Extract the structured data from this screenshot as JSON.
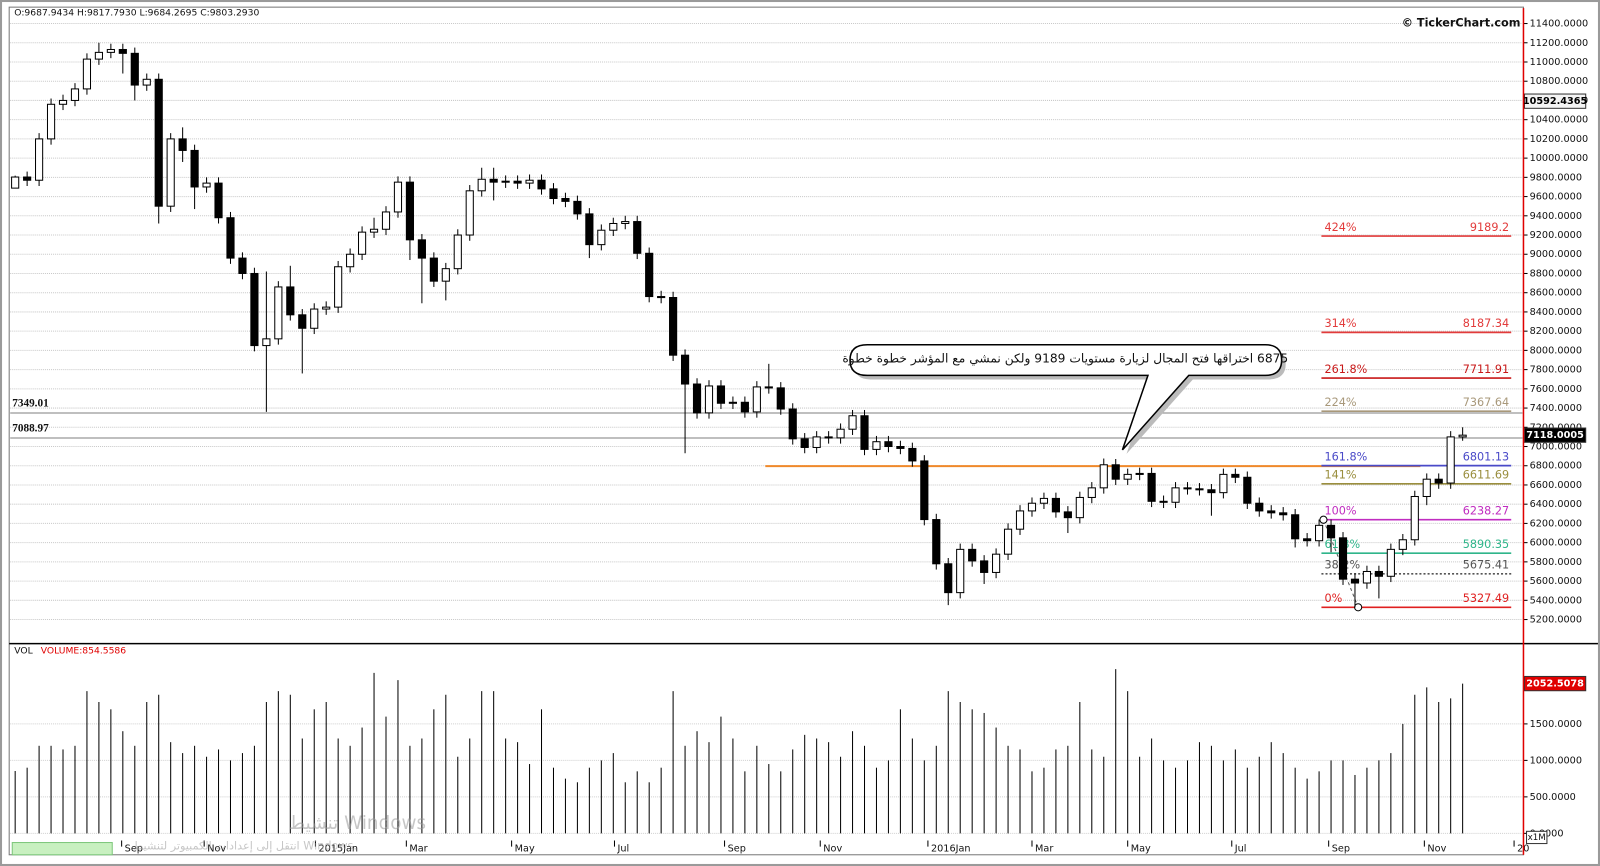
{
  "header": {
    "ohlc_text": "O:9687.9434 H:9817.7930 L:9684.2695 C:9803.2930",
    "copyright": "© TickerChart.com"
  },
  "watermark": [
    "تنشيط Windows",
    "انتقل إلى إعدادات الكمبيوتر لتنشيط Windows."
  ],
  "chart_data": [
    {
      "type": "candlestick",
      "open": [
        9687.9434,
        9803.293,
        9770,
        10200,
        10560,
        10600,
        10720,
        11030,
        11100,
        11130,
        11090,
        10760,
        10820,
        9500,
        10200,
        10080,
        9700,
        9740,
        9380,
        8960,
        8800,
        8050,
        8120,
        8660,
        8370,
        8230,
        8430,
        8450,
        8870,
        9000,
        9230,
        9260,
        9440,
        9750,
        9150,
        8960,
        8720,
        8850,
        9200,
        9660,
        9780,
        9750,
        9760,
        9740,
        9770,
        9680,
        9580,
        9550,
        9420,
        9100,
        9250,
        9320,
        9340,
        9010,
        8560,
        8550,
        7950,
        7650,
        7350,
        7630,
        7450,
        7460,
        7360,
        7620,
        7610,
        7390,
        7080,
        6990,
        7100,
        7090,
        7180,
        7320,
        6970,
        7050,
        7000,
        6980,
        6850,
        6240,
        5780,
        5480,
        5930,
        5810,
        5690,
        5880,
        6140,
        6330,
        6410,
        6460,
        6320,
        6260,
        6470,
        6570,
        6810,
        6660,
        6710,
        6720,
        6430,
        6420,
        6570,
        6560,
        6550,
        6520,
        6710,
        6680,
        6410,
        6330,
        6310,
        6290,
        6040,
        6020,
        6180,
        6050,
        5620,
        5580,
        5700,
        5650,
        5930,
        6030,
        6480,
        6660,
        6620,
        7100
      ],
      "high": [
        9817.793,
        9860,
        10260,
        10620,
        10660,
        10780,
        11090,
        11200,
        11190,
        11190,
        11150,
        10880,
        10880,
        10260,
        10320,
        10140,
        9800,
        9800,
        9440,
        9020,
        8860,
        8820,
        8720,
        8880,
        8430,
        8490,
        8510,
        8930,
        9060,
        9290,
        9380,
        9500,
        9810,
        9810,
        9210,
        9020,
        8910,
        9260,
        9720,
        9900,
        9900,
        9820,
        9820,
        9830,
        9830,
        9740,
        9640,
        9610,
        9480,
        9310,
        9380,
        9400,
        9400,
        9070,
        8620,
        8610,
        8010,
        7710,
        7690,
        7690,
        7520,
        7520,
        7680,
        7860,
        7670,
        7450,
        7140,
        7160,
        7160,
        7240,
        7380,
        7380,
        7110,
        7110,
        7060,
        7040,
        6910,
        6300,
        5840,
        5990,
        5990,
        5870,
        5940,
        6200,
        6390,
        6470,
        6520,
        6520,
        6380,
        6530,
        6630,
        6875,
        6870,
        6770,
        6780,
        6780,
        6490,
        6630,
        6630,
        6620,
        6610,
        6770,
        6770,
        6740,
        6470,
        6390,
        6370,
        6350,
        6100,
        6240,
        6240,
        6110,
        5680,
        5760,
        5760,
        5990,
        6090,
        6540,
        6720,
        6720,
        7160,
        7200
      ],
      "low": [
        9684.2695,
        9710,
        9710,
        10140,
        10500,
        10540,
        10660,
        10970,
        11040,
        10880,
        10600,
        10700,
        9320,
        9440,
        9960,
        9470,
        9640,
        9320,
        8900,
        8740,
        7990,
        7360,
        8060,
        8310,
        7760,
        8170,
        8370,
        8390,
        8810,
        8940,
        9170,
        9200,
        9380,
        8940,
        8490,
        8660,
        8520,
        8790,
        9140,
        9600,
        9560,
        9690,
        9680,
        9680,
        9620,
        9520,
        9490,
        9360,
        8960,
        9040,
        9190,
        9260,
        8950,
        8500,
        8490,
        7890,
        6930,
        7290,
        7290,
        7390,
        7390,
        7300,
        7300,
        7550,
        7330,
        7020,
        6930,
        6930,
        7030,
        7030,
        7120,
        6910,
        6910,
        6940,
        6920,
        6790,
        6180,
        5720,
        5350,
        5420,
        5750,
        5570,
        5630,
        5820,
        6080,
        6270,
        6350,
        6260,
        6100,
        6200,
        6410,
        6510,
        6600,
        6600,
        6650,
        6370,
        6360,
        6360,
        6500,
        6490,
        6280,
        6460,
        6620,
        6350,
        6270,
        6250,
        6230,
        5950,
        5960,
        5960,
        5900,
        5560,
        5327.49,
        5520,
        5420,
        5590,
        5870,
        5970,
        6390,
        6560,
        6560,
        7060
      ],
      "close": [
        9803.293,
        9770,
        10200,
        10560,
        10600,
        10720,
        11030,
        11100,
        11130,
        11090,
        10760,
        10820,
        9500,
        10200,
        10080,
        9700,
        9740,
        9380,
        8960,
        8800,
        8050,
        8120,
        8660,
        8370,
        8230,
        8430,
        8450,
        8870,
        9000,
        9230,
        9260,
        9440,
        9750,
        9150,
        8960,
        8720,
        8850,
        9200,
        9660,
        9780,
        9750,
        9760,
        9740,
        9770,
        9680,
        9580,
        9550,
        9420,
        9100,
        9250,
        9320,
        9340,
        9010,
        8560,
        8550,
        7950,
        7650,
        7350,
        7630,
        7450,
        7460,
        7360,
        7620,
        7610,
        7390,
        7080,
        6990,
        7100,
        7090,
        7180,
        7320,
        6970,
        7050,
        7000,
        6980,
        6850,
        6240,
        5780,
        5480,
        5930,
        5810,
        5690,
        5880,
        6140,
        6330,
        6410,
        6460,
        6320,
        6260,
        6470,
        6570,
        6810,
        6660,
        6710,
        6720,
        6430,
        6420,
        6570,
        6560,
        6550,
        6520,
        6710,
        6680,
        6410,
        6330,
        6310,
        6290,
        6040,
        6020,
        6180,
        6050,
        5620,
        5580,
        5700,
        5650,
        5930,
        6030,
        6480,
        6660,
        6620,
        7100,
        7118.0005
      ],
      "up_color": "#ffffff",
      "down_color": "#000000",
      "xlim": [
        -0.5,
        126
      ],
      "xticks": [
        {
          "value": 8.9,
          "label": "Sep"
        },
        {
          "value": 15.8,
          "label": "Nov"
        },
        {
          "value": 25.1,
          "label": "2015Jan"
        },
        {
          "value": 32.7,
          "label": "Mar"
        },
        {
          "value": 41.5,
          "label": "May"
        },
        {
          "value": 50.1,
          "label": "Jul"
        },
        {
          "value": 59.3,
          "label": "Sep"
        },
        {
          "value": 67.3,
          "label": "Nov"
        },
        {
          "value": 76.3,
          "label": "2016Jan"
        },
        {
          "value": 85.0,
          "label": "Mar"
        },
        {
          "value": 93.0,
          "label": "May"
        },
        {
          "value": 101.7,
          "label": "Jul"
        },
        {
          "value": 109.8,
          "label": "Sep"
        },
        {
          "value": 117.8,
          "label": "Nov"
        },
        {
          "value": 125.3,
          "label": "20"
        }
      ],
      "ylim": [
        4960,
        11560
      ],
      "yticks": [
        {
          "value": 5200,
          "label": "5200.0000"
        },
        {
          "value": 5400,
          "label": "5400.0000"
        },
        {
          "value": 5600,
          "label": "5600.0000"
        },
        {
          "value": 5800,
          "label": "5800.0000"
        },
        {
          "value": 6000,
          "label": "6000.0000"
        },
        {
          "value": 6200,
          "label": "6200.0000"
        },
        {
          "value": 6400,
          "label": "6400.0000"
        },
        {
          "value": 6600,
          "label": "6600.0000"
        },
        {
          "value": 6800,
          "label": "6800.0000"
        },
        {
          "value": 7000,
          "label": "7000.0000"
        },
        {
          "value": 7200,
          "label": "7200.0000"
        },
        {
          "value": 7400,
          "label": "7400.0000"
        },
        {
          "value": 7600,
          "label": "7600.0000"
        },
        {
          "value": 7800,
          "label": "7800.0000"
        },
        {
          "value": 8000,
          "label": "8000.0000"
        },
        {
          "value": 8200,
          "label": "8200.0000"
        },
        {
          "value": 8400,
          "label": "8400.0000"
        },
        {
          "value": 8600,
          "label": "8600.0000"
        },
        {
          "value": 8800,
          "label": "8800.0000"
        },
        {
          "value": 9000,
          "label": "9000.0000"
        },
        {
          "value": 9200,
          "label": "9200.0000"
        },
        {
          "value": 9400,
          "label": "9400.0000"
        },
        {
          "value": 9600,
          "label": "9600.0000"
        },
        {
          "value": 9800,
          "label": "9800.0000"
        },
        {
          "value": 10000,
          "label": "10000.0000"
        },
        {
          "value": 10200,
          "label": "10200.0000"
        },
        {
          "value": 10400,
          "label": "10400.0000"
        },
        {
          "value": 10600,
          "label": "10600.0000"
        },
        {
          "value": 10800,
          "label": "10800.0000"
        },
        {
          "value": 11000,
          "label": "11000.0000"
        },
        {
          "value": 11200,
          "label": "11200.0000"
        },
        {
          "value": 11400,
          "label": "11400.0000"
        }
      ],
      "grid": true,
      "cursor_value": 10592.4365,
      "levels": [
        7349.01,
        7088.97
      ],
      "trend_line": {
        "value": 6796,
        "color": "#f0892a"
      },
      "fib_levels": [
        {
          "label": "424%",
          "value": 9189.2,
          "color": "#e23b3b"
        },
        {
          "label": "314%",
          "value": 8187.34,
          "color": "#e23b3b"
        },
        {
          "label": "261.8%",
          "value": 7711.91,
          "color": "#c81818"
        },
        {
          "label": "224%",
          "value": 7367.64,
          "color": "#a8987a"
        },
        {
          "label": "161.8%",
          "value": 6801.13,
          "color": "#4a4ac8"
        },
        {
          "label": "141%",
          "value": 6611.69,
          "color": "#9a8e3e"
        },
        {
          "label": "100%",
          "value": 6238.27,
          "color": "#c02cc0"
        },
        {
          "label": "61.8%",
          "value": 5890.35,
          "color": "#2fb58a"
        },
        {
          "label": "38.2%",
          "value": 5675.41,
          "color": "#555555"
        },
        {
          "label": "0%",
          "value": 5327.49,
          "color": "#e02020"
        }
      ],
      "annotation": "6875 اختراقها فتح المجال لزيارة مستويات 9189 ولكن نمشي مع المؤشر خطوة خطوة"
    },
    {
      "type": "bar",
      "title": "VOL",
      "legend": "VOLUME:854.5586",
      "color": "#000000",
      "values": [
        854.5586,
        900,
        1200,
        1200,
        1150,
        1200,
        1950,
        1800,
        1700,
        1400,
        1200,
        1800,
        1900,
        1250,
        1100,
        1200,
        1050,
        1150,
        1000,
        1100,
        1200,
        1800,
        1950,
        1900,
        1300,
        1700,
        1800,
        1300,
        1200,
        1450,
        2200,
        1600,
        2100,
        1200,
        1300,
        1700,
        1900,
        1050,
        1300,
        1950,
        1950,
        1300,
        1250,
        950,
        1700,
        900,
        750,
        700,
        900,
        1000,
        1100,
        700,
        850,
        700,
        900,
        1950,
        1200,
        1400,
        1250,
        1600,
        1300,
        850,
        1200,
        950,
        850,
        1150,
        1350,
        1300,
        1250,
        1050,
        1400,
        1200,
        900,
        1000,
        1700,
        1300,
        1000,
        1200,
        1950,
        1800,
        1700,
        1650,
        1450,
        1200,
        1150,
        850,
        900,
        1150,
        1200,
        1800,
        1150,
        1050,
        2250,
        1950,
        1050,
        1300,
        1000,
        900,
        1000,
        1250,
        1200,
        1000,
        1150,
        900,
        1050,
        1250,
        1100,
        900,
        750,
        850,
        1000,
        1000,
        800,
        900,
        1000,
        1100,
        1500,
        1900,
        2000,
        1800,
        1850,
        2052.5078
      ],
      "ylim": [
        0,
        2600
      ],
      "yticks": [
        {
          "value": 0,
          "label": "0.0000"
        },
        {
          "value": 500,
          "label": "500.0000"
        },
        {
          "value": 1000,
          "label": "1000.0000"
        },
        {
          "value": 1500,
          "label": "1500.0000"
        }
      ],
      "unit_label": "x1M"
    }
  ]
}
